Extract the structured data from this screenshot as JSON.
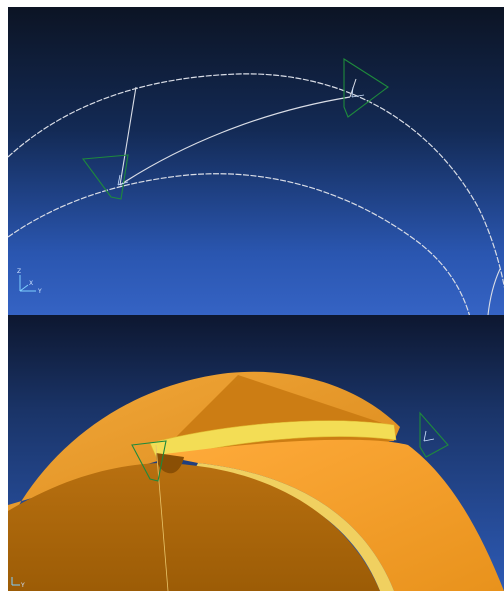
{
  "top_view": {
    "viewport_label": "",
    "triad": {
      "x": "X",
      "y": "Y",
      "z": "Z"
    },
    "colors": {
      "background_top": "#0c1424",
      "background_bottom": "#3563c4",
      "curve": "#d9dde6",
      "csys_frame": "#1e8a3c"
    }
  },
  "bottom_view": {
    "triad": {
      "x": "X",
      "y": "Y",
      "z": "Z"
    },
    "colors": {
      "background_top": "#0d1730",
      "background_bottom": "#2d5ab5",
      "solid_body": "#e8961e",
      "solid_shadow": "#a86408",
      "thread_highlight": "#f3dd55",
      "csys_frame": "#1e8a3c"
    }
  },
  "icons": [
    "axis-triad-icon",
    "csys-frame-icon"
  ]
}
